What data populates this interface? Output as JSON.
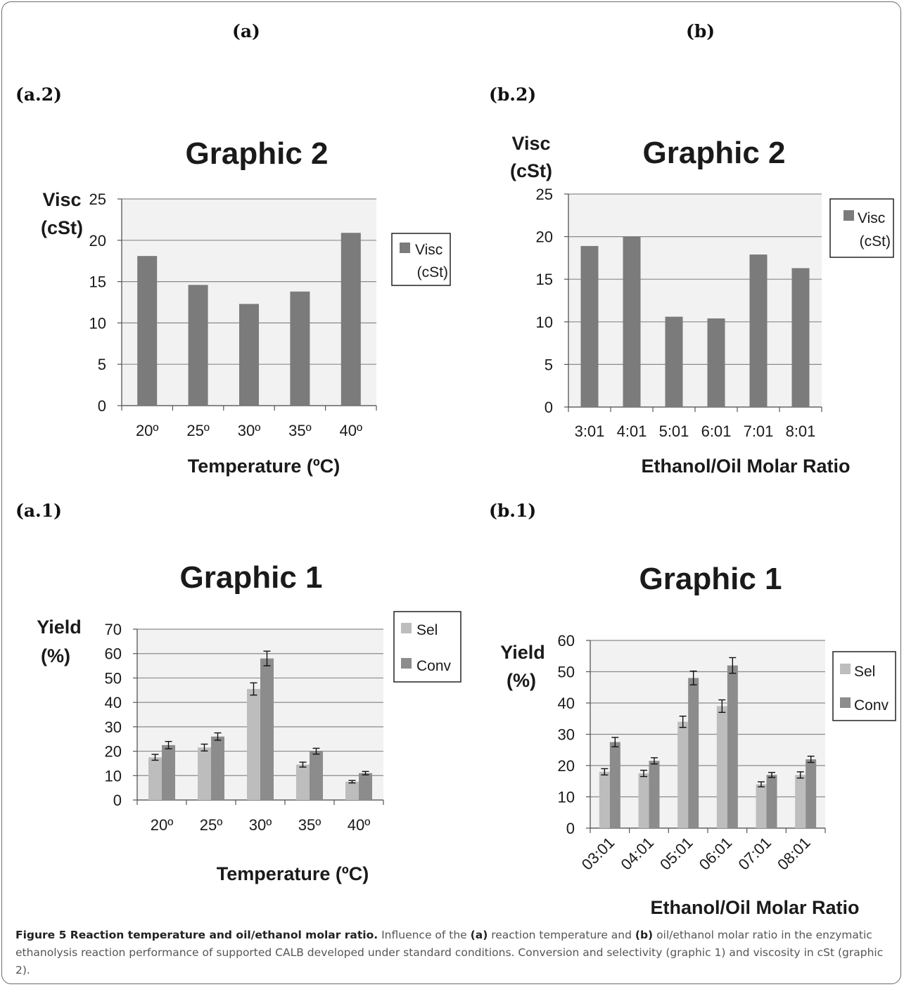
{
  "panels": {
    "a": "(a)",
    "b": "(b)",
    "a2": "(a.2)",
    "b2": "(b.2)",
    "a1": "(a.1)",
    "b1": "(b.1)"
  },
  "colors": {
    "visc": "#7b7b7b",
    "sel": "#bdbdbd",
    "conv": "#8c8c8c",
    "plot_bg": "#f2f2f2",
    "grid": "#8a8a8a"
  },
  "chart_data": [
    {
      "id": "a2",
      "type": "bar",
      "title": "Graphic 2",
      "xlabel": "Temperature (ºC)",
      "ylabel": "Visc (cSt)",
      "ylim": [
        0,
        25
      ],
      "yticks": [
        0,
        5,
        10,
        15,
        20,
        25
      ],
      "grid": true,
      "legend": "right",
      "categories": [
        "20º",
        "25º",
        "30º",
        "35º",
        "40º"
      ],
      "series": [
        {
          "name": "Visc (cSt)",
          "values": [
            18.1,
            14.6,
            12.3,
            13.8,
            20.9
          ]
        }
      ]
    },
    {
      "id": "b2",
      "type": "bar",
      "title": "Graphic 2",
      "xlabel": "Ethanol/Oil Molar Ratio",
      "ylabel": "Visc (cSt)",
      "ylim": [
        0,
        25
      ],
      "yticks": [
        0,
        5,
        10,
        15,
        20,
        25
      ],
      "grid": true,
      "legend": "top-right",
      "categories": [
        "3:01",
        "4:01",
        "5:01",
        "6:01",
        "7:01",
        "8:01"
      ],
      "series": [
        {
          "name": "Visc (cSt)",
          "values": [
            18.9,
            20.0,
            10.6,
            10.4,
            17.9,
            16.3
          ]
        }
      ]
    },
    {
      "id": "a1",
      "type": "bar",
      "title": "Graphic 1",
      "xlabel": "Temperature (ºC)",
      "ylabel": "Yield (%)",
      "ylim": [
        0,
        70
      ],
      "yticks": [
        0,
        10,
        20,
        30,
        40,
        50,
        60,
        70
      ],
      "grid": true,
      "legend": "top-right",
      "categories": [
        "20º",
        "25º",
        "30º",
        "35º",
        "40º"
      ],
      "series": [
        {
          "name": "Sel",
          "values": [
            17.5,
            21.5,
            45.5,
            14.5,
            7.5
          ],
          "errors": [
            1.2,
            1.4,
            2.5,
            1.0,
            0.5
          ]
        },
        {
          "name": "Conv",
          "values": [
            22.5,
            26.0,
            58.0,
            20.0,
            11.0
          ],
          "errors": [
            1.5,
            1.5,
            3.0,
            1.2,
            0.7
          ]
        }
      ]
    },
    {
      "id": "b1",
      "type": "bar",
      "title": "Graphic 1",
      "xlabel": "Ethanol/Oil Molar Ratio",
      "ylabel": "Yield (%)",
      "ylim": [
        0,
        60
      ],
      "yticks": [
        0,
        10,
        20,
        30,
        40,
        50,
        60
      ],
      "grid": true,
      "legend": "right",
      "categories": [
        "03:01",
        "04:01",
        "05:01",
        "06:01",
        "07:01",
        "08:01"
      ],
      "series": [
        {
          "name": "Sel",
          "values": [
            18.0,
            17.5,
            34.0,
            39.0,
            14.0,
            17.0
          ],
          "errors": [
            1.0,
            1.0,
            1.8,
            2.0,
            0.8,
            1.0
          ]
        },
        {
          "name": "Conv",
          "values": [
            27.5,
            21.5,
            48.0,
            52.0,
            17.0,
            22.0
          ],
          "errors": [
            1.5,
            1.0,
            2.2,
            2.5,
            0.8,
            1.0
          ]
        }
      ]
    }
  ],
  "caption": {
    "lead": "Figure 5 Reaction temperature and oil/ethanol molar ratio.",
    "t1": " Influence of the ",
    "b1": "(a)",
    "t2": " reaction temperature and ",
    "b2": "(b)",
    "t3": " oil/ethanol molar ratio in the enzymatic ethanolysis reaction performance of supported CALB developed under standard conditions. Conversion and selectivity (graphic 1) and viscosity in cSt (graphic 2)."
  }
}
